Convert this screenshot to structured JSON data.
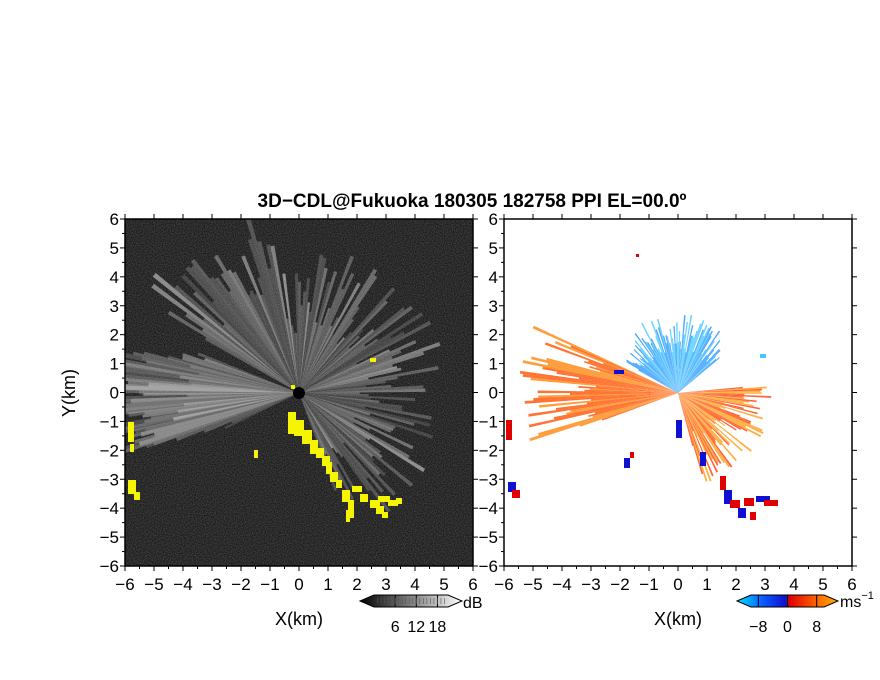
{
  "title": "3D−CDL@Fukuoka 180305 182758 PPI EL=00.0º",
  "chart_data": [
    {
      "type": "heatmap",
      "panel": "reflectivity",
      "xlabel": "X(km)",
      "ylabel": "Y(km)",
      "xlim": [
        -6,
        6
      ],
      "ylim": [
        -6,
        6
      ],
      "xticks": [
        -6,
        -5,
        -4,
        -3,
        -2,
        -1,
        0,
        1,
        2,
        3,
        4,
        5,
        6
      ],
      "yticks": [
        -6,
        -5,
        -4,
        -3,
        -2,
        -1,
        0,
        1,
        2,
        3,
        4,
        5,
        6
      ],
      "background_color": "#1a1a1a",
      "clutter_color": "#f5f500",
      "colorbar": {
        "unit": "dB",
        "ticks": [
          6,
          12,
          18
        ],
        "range": [
          0,
          21
        ],
        "colors": [
          "#000000",
          "#ffffff"
        ]
      }
    },
    {
      "type": "heatmap",
      "panel": "doppler_velocity",
      "xlabel": "X(km)",
      "ylabel": "",
      "xlim": [
        -6,
        6
      ],
      "ylim": [
        -6,
        6
      ],
      "xticks": [
        -6,
        -5,
        -4,
        -3,
        -2,
        -1,
        0,
        1,
        2,
        3,
        4,
        5,
        6
      ],
      "yticks": [
        -6,
        -5,
        -4,
        -3,
        -2,
        -1,
        0,
        1,
        2,
        3,
        4,
        5,
        6
      ],
      "background_color": "#ffffff",
      "colorbar": {
        "unit": "ms",
        "unit_exponent": "−1",
        "ticks": [
          -8,
          0,
          8
        ],
        "tick_labels": [
          "−8",
          "0",
          "8"
        ],
        "range": [
          -10,
          10
        ],
        "colors": [
          "#00e5ff",
          "#0a5cff",
          "#1010d0",
          "#e00000",
          "#ff6a00",
          "#ffb000"
        ]
      }
    }
  ]
}
